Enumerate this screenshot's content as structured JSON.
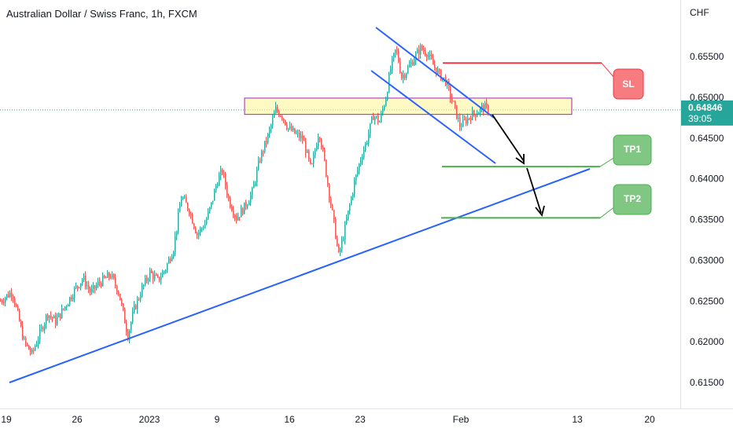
{
  "header": {
    "title": "Australian Dollar / Swiss Franc, 1h, FXCM"
  },
  "price_axis": {
    "currency": "CHF",
    "ticks": [
      "0.65500",
      "0.65000",
      "0.64500",
      "0.64000",
      "0.63500",
      "0.63000",
      "0.62500",
      "0.62000",
      "0.61500"
    ]
  },
  "time_axis": {
    "ticks": [
      "19",
      "26",
      "2023",
      "9",
      "16",
      "23",
      "Feb",
      "13",
      "20"
    ]
  },
  "current_price": {
    "value": "0.64846",
    "countdown": "39:05",
    "color": "#26a69a"
  },
  "annotations": {
    "sl_label": "SL",
    "tp1_label": "TP1",
    "tp2_label": "TP2",
    "sl_color": "#f23645",
    "tp_color": "#4caf50",
    "trendline_color": "#2962ff",
    "zone_fill": "#fff59d",
    "zone_border": "#9c27b0"
  },
  "chart_data": {
    "type": "candlestick",
    "title": "Australian Dollar / Swiss Franc, 1h, FXCM",
    "ylabel": "CHF",
    "ylim": [
      0.6125,
      0.6578
    ],
    "x_ticks": [
      "19",
      "26",
      "2023",
      "9",
      "16",
      "23",
      "Feb",
      "13",
      "20"
    ],
    "close_path": [
      [
        0,
        0.625
      ],
      [
        15,
        0.6262
      ],
      [
        30,
        0.62
      ],
      [
        40,
        0.6185
      ],
      [
        50,
        0.621
      ],
      [
        60,
        0.6235
      ],
      [
        70,
        0.6225
      ],
      [
        80,
        0.624
      ],
      [
        95,
        0.6265
      ],
      [
        105,
        0.6278
      ],
      [
        115,
        0.626
      ],
      [
        125,
        0.6272
      ],
      [
        140,
        0.6282
      ],
      [
        150,
        0.6262
      ],
      [
        162,
        0.6208
      ],
      [
        170,
        0.624
      ],
      [
        180,
        0.6265
      ],
      [
        190,
        0.6285
      ],
      [
        200,
        0.6275
      ],
      [
        210,
        0.629
      ],
      [
        220,
        0.6315
      ],
      [
        230,
        0.6378
      ],
      [
        240,
        0.6362
      ],
      [
        250,
        0.6332
      ],
      [
        260,
        0.6345
      ],
      [
        268,
        0.6368
      ],
      [
        275,
        0.6395
      ],
      [
        282,
        0.641
      ],
      [
        290,
        0.6375
      ],
      [
        300,
        0.6352
      ],
      [
        310,
        0.6365
      ],
      [
        320,
        0.6383
      ],
      [
        330,
        0.6425
      ],
      [
        340,
        0.6452
      ],
      [
        350,
        0.6485
      ],
      [
        358,
        0.6478
      ],
      [
        366,
        0.6462
      ],
      [
        375,
        0.6455
      ],
      [
        385,
        0.6448
      ],
      [
        395,
        0.641
      ],
      [
        405,
        0.646
      ],
      [
        412,
        0.642
      ],
      [
        418,
        0.6382
      ],
      [
        424,
        0.6345
      ],
      [
        430,
        0.6305
      ],
      [
        436,
        0.633
      ],
      [
        442,
        0.6358
      ],
      [
        450,
        0.6395
      ],
      [
        458,
        0.6425
      ],
      [
        466,
        0.6448
      ],
      [
        474,
        0.6478
      ],
      [
        482,
        0.647
      ],
      [
        490,
        0.65
      ],
      [
        496,
        0.6535
      ],
      [
        503,
        0.656
      ],
      [
        510,
        0.6525
      ],
      [
        518,
        0.6535
      ],
      [
        526,
        0.6548
      ],
      [
        534,
        0.656
      ],
      [
        542,
        0.6555
      ],
      [
        550,
        0.654
      ],
      [
        558,
        0.6528
      ],
      [
        566,
        0.652
      ],
      [
        572,
        0.6502
      ],
      [
        578,
        0.6485
      ],
      [
        584,
        0.6465
      ],
      [
        590,
        0.647
      ],
      [
        598,
        0.6478
      ],
      [
        606,
        0.6482
      ],
      [
        614,
        0.6488
      ],
      [
        620,
        0.6485
      ]
    ],
    "price_levels": {
      "sl": 0.6542,
      "tp1": 0.6415,
      "tp2": 0.6352,
      "zone_top": 0.6499,
      "zone_bottom": 0.6479,
      "current": 0.64846
    }
  }
}
